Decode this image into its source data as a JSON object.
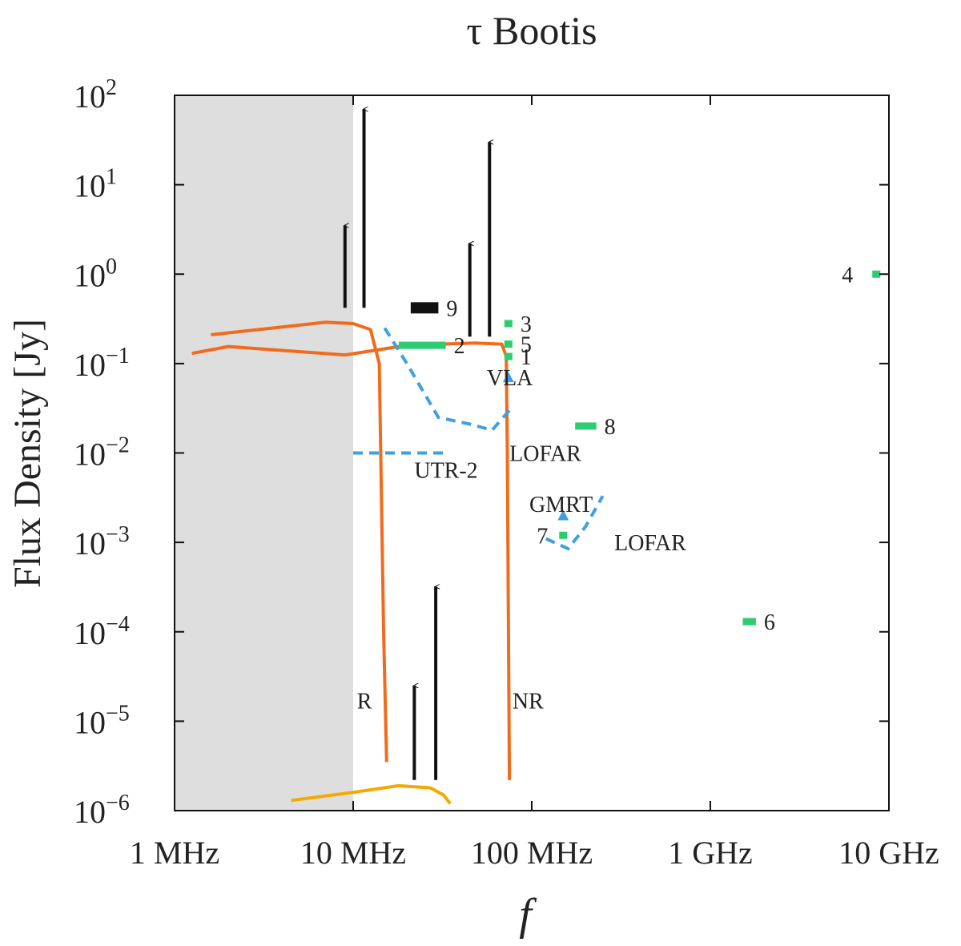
{
  "chart_data": {
    "type": "scatter",
    "title": "τ Bootis",
    "xlabel": "f",
    "ylabel": "Flux Density [Jy]",
    "xscale": "log",
    "yscale": "log",
    "xlim_hz": [
      1000000,
      10000000000
    ],
    "ylim_jy": [
      1e-06,
      100
    ],
    "x_ticks": [
      {
        "value": 1000000,
        "label": "1 MHz"
      },
      {
        "value": 10000000,
        "label": "10 MHz"
      },
      {
        "value": 100000000,
        "label": "100 MHz"
      },
      {
        "value": 1000000000,
        "label": "1 GHz"
      },
      {
        "value": 10000000000,
        "label": "10 GHz"
      }
    ],
    "y_ticks": [
      {
        "value": 100,
        "base": "10",
        "exp": "2"
      },
      {
        "value": 10,
        "base": "10",
        "exp": "1"
      },
      {
        "value": 1,
        "base": "10",
        "exp": "0"
      },
      {
        "value": 0.1,
        "base": "10",
        "exp": "−1"
      },
      {
        "value": 0.01,
        "base": "10",
        "exp": "−2"
      },
      {
        "value": 0.001,
        "base": "10",
        "exp": "−3"
      },
      {
        "value": 0.0001,
        "base": "10",
        "exp": "−4"
      },
      {
        "value": 1e-05,
        "base": "10",
        "exp": "−5"
      },
      {
        "value": 1e-06,
        "base": "10",
        "exp": "−6"
      }
    ],
    "shaded_region": {
      "x_from_hz": 1000000,
      "x_to_hz": 10000000,
      "color": "#dedede"
    },
    "model_curves": [
      {
        "name": "R-upper",
        "color": "#f26a1b",
        "points": [
          [
            1600000,
            0.21
          ],
          [
            7000000,
            0.29
          ],
          [
            10000000,
            0.28
          ],
          [
            12500000,
            0.24
          ],
          [
            14000000,
            0.1
          ],
          [
            14800000,
            0.0001
          ],
          [
            15400000,
            3.5e-06
          ]
        ]
      },
      {
        "name": "R-lower",
        "color": "#f26a1b",
        "points": [
          [
            1250000,
            0.13
          ],
          [
            2000000,
            0.155
          ],
          [
            9000000,
            0.125
          ],
          [
            20000000,
            0.16
          ],
          [
            48000000,
            0.17
          ],
          [
            68000000,
            0.165
          ],
          [
            72000000,
            0.12
          ],
          [
            73000000,
            0.01
          ],
          [
            75000000,
            2.2e-06
          ]
        ]
      },
      {
        "name": "yellow",
        "color": "#f5a800",
        "points": [
          [
            4500000,
            1.3e-06
          ],
          [
            10000000,
            1.6e-06
          ],
          [
            18000000,
            1.9e-06
          ],
          [
            27000000,
            1.8e-06
          ],
          [
            32000000,
            1.5e-06
          ],
          [
            35000000,
            1.2e-06
          ]
        ]
      }
    ],
    "sensitivity_curves": [
      {
        "name": "LOFAR-LBA",
        "color": "#3fa0e0",
        "points": [
          [
            15000000,
            0.25
          ],
          [
            20000000,
            0.1
          ],
          [
            30000000,
            0.025
          ],
          [
            45000000,
            0.021
          ],
          [
            60000000,
            0.018
          ],
          [
            75000000,
            0.03
          ]
        ]
      },
      {
        "name": "UTR-2",
        "color": "#3fa0e0",
        "points": [
          [
            10000000,
            0.01
          ],
          [
            33000000,
            0.01
          ]
        ]
      },
      {
        "name": "LOFAR-HBA",
        "color": "#3fa0e0",
        "points": [
          [
            120000000,
            0.0011
          ],
          [
            160000000,
            0.00085
          ],
          [
            200000000,
            0.0015
          ],
          [
            250000000,
            0.0033
          ]
        ]
      }
    ],
    "instrument_points": [
      {
        "name": "VLA",
        "x_hz": 74000000,
        "y_jy": 0.07,
        "color": "#3fa0e0"
      },
      {
        "name": "GMRT",
        "x_hz": 150000000,
        "y_jy": 0.002,
        "color": "#3fa0e0"
      }
    ],
    "measurements": [
      {
        "id": "1",
        "x_hz": 74000000,
        "y_jy": 0.12,
        "x_hz_end": null,
        "color": "#2ecc71"
      },
      {
        "id": "2",
        "x_hz": 18000000,
        "y_jy": 0.16,
        "x_hz_end": 33000000,
        "color": "#2ecc71"
      },
      {
        "id": "3",
        "x_hz": 74000000,
        "y_jy": 0.28,
        "x_hz_end": null,
        "color": "#2ecc71"
      },
      {
        "id": "4",
        "x_hz": 8500000000,
        "y_jy": 1.0,
        "x_hz_end": null,
        "color": "#2ecc71"
      },
      {
        "id": "5",
        "x_hz": 74000000,
        "y_jy": 0.165,
        "x_hz_end": null,
        "color": "#2ecc71"
      },
      {
        "id": "6",
        "x_hz": 1520000000,
        "y_jy": 0.00013,
        "x_hz_end": 1800000000,
        "color": "#2ecc71"
      },
      {
        "id": "7",
        "x_hz": 150000000,
        "y_jy": 0.0012,
        "x_hz_end": null,
        "color": "#2ecc71"
      },
      {
        "id": "8",
        "x_hz": 175000000,
        "y_jy": 0.02,
        "x_hz_end": 230000000,
        "color": "#2ecc71"
      },
      {
        "id": "9",
        "x_hz": 21000000,
        "y_jy": 0.42,
        "x_hz_end": 30000000,
        "color": "#111111"
      }
    ],
    "lower_limit_arrows": [
      {
        "x_hz": 9000000,
        "y_from_jy": 0.42,
        "y_to_jy": 3.5
      },
      {
        "x_hz": 11500000,
        "y_from_jy": 0.42,
        "y_to_jy": 70
      },
      {
        "x_hz": 45000000,
        "y_from_jy": 0.2,
        "y_to_jy": 2.2
      },
      {
        "x_hz": 58000000,
        "y_from_jy": 0.2,
        "y_to_jy": 30
      },
      {
        "x_hz": 22000000,
        "y_from_jy": 2.2e-06,
        "y_to_jy": 2.5e-05
      },
      {
        "x_hz": 29000000,
        "y_from_jy": 2.2e-06,
        "y_to_jy": 0.00032
      }
    ],
    "annotations": [
      {
        "text": "VLA",
        "x_hz": 56000000,
        "y_jy": 0.07
      },
      {
        "text": "LOFAR",
        "x_hz": 75000000,
        "y_jy": 0.01
      },
      {
        "text": "UTR-2",
        "x_hz": 22000000,
        "y_jy": 0.0065
      },
      {
        "text": "GMRT",
        "x_hz": 97000000,
        "y_jy": 0.0027
      },
      {
        "text": "LOFAR",
        "x_hz": 290000000,
        "y_jy": 0.001
      },
      {
        "text": "R",
        "x_hz": 10500000,
        "y_jy": 1.7e-05
      },
      {
        "text": "NR",
        "x_hz": 78000000,
        "y_jy": 1.7e-05
      }
    ]
  }
}
